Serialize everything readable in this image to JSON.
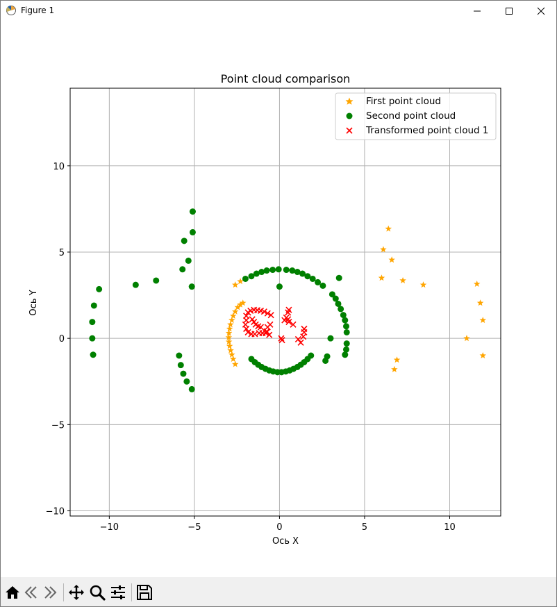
{
  "window": {
    "title": "Figure 1"
  },
  "chart_data": {
    "type": "scatter",
    "title": "Point cloud comparison",
    "xlabel": "Ось X",
    "ylabel": "Ось Y",
    "xlim": [
      -12.3,
      13.0
    ],
    "ylim": [
      -10.3,
      14.5
    ],
    "xticks": [
      -10,
      -5,
      0,
      5,
      10
    ],
    "yticks": [
      -10,
      -5,
      0,
      5,
      10
    ],
    "xtick_labels": [
      "−10",
      "−5",
      "0",
      "5",
      "10"
    ],
    "ytick_labels": [
      "−10",
      "−5",
      "0",
      "5",
      "10"
    ],
    "grid": true,
    "legend_position": "upper right",
    "series": [
      {
        "name": "First point cloud",
        "marker": "star",
        "color": "#ffa500",
        "points": [
          [
            -2.6,
            3.1
          ],
          [
            -2.3,
            3.3
          ],
          [
            -2.15,
            2.05
          ],
          [
            -2.3,
            1.95
          ],
          [
            -2.45,
            1.8
          ],
          [
            -2.6,
            1.55
          ],
          [
            -2.72,
            1.3
          ],
          [
            -2.8,
            1.05
          ],
          [
            -2.88,
            0.8
          ],
          [
            -2.93,
            0.55
          ],
          [
            -2.97,
            0.3
          ],
          [
            -2.98,
            0.05
          ],
          [
            -2.97,
            -0.2
          ],
          [
            -2.93,
            -0.45
          ],
          [
            -2.87,
            -0.7
          ],
          [
            -2.8,
            -0.95
          ],
          [
            -2.72,
            -1.2
          ],
          [
            -2.6,
            -1.5
          ],
          [
            6.4,
            6.35
          ],
          [
            6.1,
            5.15
          ],
          [
            6.6,
            4.55
          ],
          [
            6.0,
            3.5
          ],
          [
            7.25,
            3.35
          ],
          [
            8.45,
            3.1
          ],
          [
            6.9,
            -1.25
          ],
          [
            6.75,
            -1.8
          ],
          [
            11.6,
            3.15
          ],
          [
            11.8,
            2.05
          ],
          [
            11.95,
            1.05
          ],
          [
            11.95,
            -1.0
          ],
          [
            11.0,
            0.0
          ]
        ]
      },
      {
        "name": "Second point cloud",
        "marker": "circle",
        "color": "#008000",
        "points": [
          [
            -10.6,
            2.85
          ],
          [
            -10.9,
            1.9
          ],
          [
            -11.0,
            0.95
          ],
          [
            -11.0,
            0.0
          ],
          [
            -10.95,
            -0.95
          ],
          [
            -8.45,
            3.1
          ],
          [
            -7.25,
            3.35
          ],
          [
            -5.1,
            7.35
          ],
          [
            -5.1,
            6.15
          ],
          [
            -5.6,
            5.65
          ],
          [
            -5.35,
            4.5
          ],
          [
            -5.7,
            4.0
          ],
          [
            -5.15,
            3.0
          ],
          [
            -5.9,
            -1.0
          ],
          [
            -5.8,
            -1.55
          ],
          [
            -5.65,
            -2.05
          ],
          [
            -5.45,
            -2.5
          ],
          [
            -5.15,
            -2.95
          ],
          [
            -2.0,
            3.45
          ],
          [
            -1.65,
            3.6
          ],
          [
            -1.35,
            3.75
          ],
          [
            -1.05,
            3.85
          ],
          [
            -0.75,
            3.93
          ],
          [
            -0.4,
            3.97
          ],
          [
            -0.05,
            4.0
          ],
          [
            0.0,
            3.0
          ],
          [
            0.4,
            3.97
          ],
          [
            0.75,
            3.93
          ],
          [
            1.05,
            3.85
          ],
          [
            1.35,
            3.75
          ],
          [
            1.65,
            3.6
          ],
          [
            1.95,
            3.45
          ],
          [
            2.25,
            3.25
          ],
          [
            2.55,
            3.05
          ],
          [
            3.1,
            2.55
          ],
          [
            3.3,
            2.3
          ],
          [
            3.45,
            2.0
          ],
          [
            3.6,
            1.7
          ],
          [
            3.75,
            1.35
          ],
          [
            3.85,
            1.05
          ],
          [
            3.92,
            0.7
          ],
          [
            3.95,
            0.35
          ],
          [
            3.5,
            3.5
          ],
          [
            3.95,
            -0.3
          ],
          [
            3.92,
            -0.65
          ],
          [
            3.85,
            -0.95
          ],
          [
            3.0,
            0.0
          ],
          [
            2.8,
            -1.05
          ],
          [
            2.7,
            -1.3
          ],
          [
            -1.65,
            -1.2
          ],
          [
            -1.45,
            -1.38
          ],
          [
            -1.25,
            -1.53
          ],
          [
            -1.05,
            -1.66
          ],
          [
            -0.82,
            -1.77
          ],
          [
            -0.6,
            -1.86
          ],
          [
            -0.37,
            -1.92
          ],
          [
            -0.12,
            -1.96
          ],
          [
            0.12,
            -1.96
          ],
          [
            0.37,
            -1.92
          ],
          [
            0.6,
            -1.86
          ],
          [
            0.82,
            -1.77
          ],
          [
            1.05,
            -1.66
          ],
          [
            1.25,
            -1.53
          ],
          [
            1.45,
            -1.38
          ],
          [
            1.65,
            -1.2
          ],
          [
            1.85,
            -1.0
          ]
        ]
      },
      {
        "name": "Transformed point cloud 1",
        "marker": "x",
        "color": "#ff0000",
        "points": [
          [
            -1.95,
            1.3
          ],
          [
            -1.85,
            1.5
          ],
          [
            -1.7,
            1.6
          ],
          [
            -1.5,
            1.65
          ],
          [
            -1.3,
            1.63
          ],
          [
            -1.1,
            1.6
          ],
          [
            -0.9,
            1.55
          ],
          [
            -0.7,
            1.45
          ],
          [
            -0.5,
            1.35
          ],
          [
            -1.6,
            1.1
          ],
          [
            -1.5,
            0.95
          ],
          [
            -1.4,
            0.8
          ],
          [
            -1.25,
            0.7
          ],
          [
            -1.1,
            0.65
          ],
          [
            -1.95,
            1.05
          ],
          [
            -2.0,
            0.8
          ],
          [
            -1.95,
            0.55
          ],
          [
            -1.85,
            0.35
          ],
          [
            -1.65,
            0.25
          ],
          [
            -1.45,
            0.25
          ],
          [
            -1.2,
            0.3
          ],
          [
            -1.0,
            0.3
          ],
          [
            -0.8,
            0.3
          ],
          [
            -0.75,
            0.35
          ],
          [
            -0.7,
            0.65
          ],
          [
            -0.55,
            0.8
          ],
          [
            -0.6,
            0.2
          ],
          [
            -0.75,
            0.4
          ],
          [
            0.5,
            1.5
          ],
          [
            0.55,
            1.65
          ],
          [
            0.3,
            1.05
          ],
          [
            0.4,
            1.2
          ],
          [
            0.55,
            0.95
          ],
          [
            0.8,
            0.8
          ],
          [
            0.5,
            1.1
          ],
          [
            0.1,
            0.0
          ],
          [
            0.15,
            -0.1
          ],
          [
            1.1,
            -0.05
          ],
          [
            1.25,
            -0.25
          ],
          [
            1.4,
            0.1
          ],
          [
            1.45,
            0.35
          ],
          [
            1.45,
            0.55
          ]
        ]
      }
    ]
  }
}
